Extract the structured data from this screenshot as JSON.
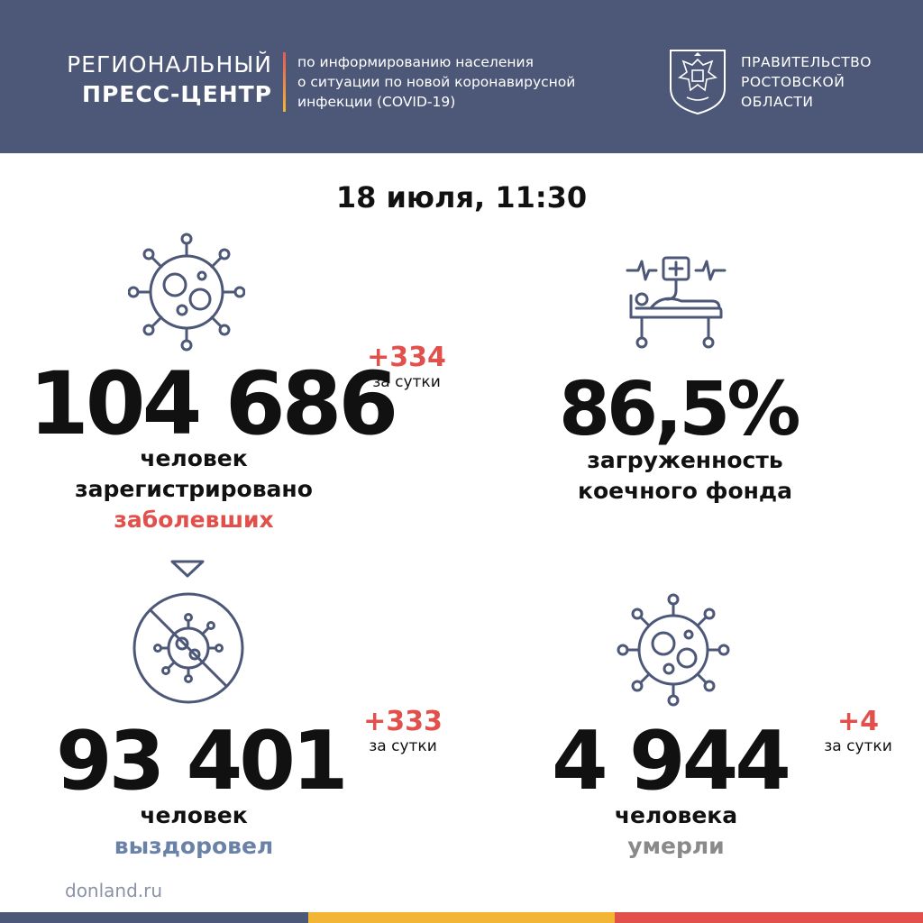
{
  "header": {
    "title_line1": "РЕГИОНАЛЬНЫЙ",
    "title_line2": "ПРЕСС-ЦЕНТР",
    "subtitle_line1": "по информированию населения",
    "subtitle_line2": "о ситуации по новой коронавирусной",
    "subtitle_line3": "инфекции (COVID-19)",
    "gov_line1": "ПРАВИТЕЛЬСТВО",
    "gov_line2": "РОСТОВСКОЙ",
    "gov_line3": "ОБЛАСТИ"
  },
  "date": "18 июля, 11:30",
  "cases": {
    "total": "104 686",
    "delta": "+334",
    "delta_label": "за сутки",
    "line1": "человек",
    "line2": "зарегистрировано",
    "line3": "заболевших"
  },
  "beds": {
    "value": "86,5%",
    "line1": "загруженность",
    "line2": "коечного фонда"
  },
  "recovered": {
    "total": "93 401",
    "delta": "+333",
    "delta_label": "за сутки",
    "line1": "человек",
    "line2": "выздоровел"
  },
  "deaths": {
    "total": "4 944",
    "delta": "+4",
    "delta_label": "за сутки",
    "line1": "человека",
    "line2": "умерли"
  },
  "footer": {
    "url": "donland.ru"
  },
  "colors": {
    "header_bg": "#4d5878",
    "accent_red": "#e2504c",
    "recovered_blue": "#6b82a8",
    "deaths_grey": "#8a8a8a",
    "icon_stroke": "#4d5878",
    "bar_blue": "#4d5878",
    "bar_yellow": "#f2b534",
    "bar_red": "#e2504c"
  }
}
